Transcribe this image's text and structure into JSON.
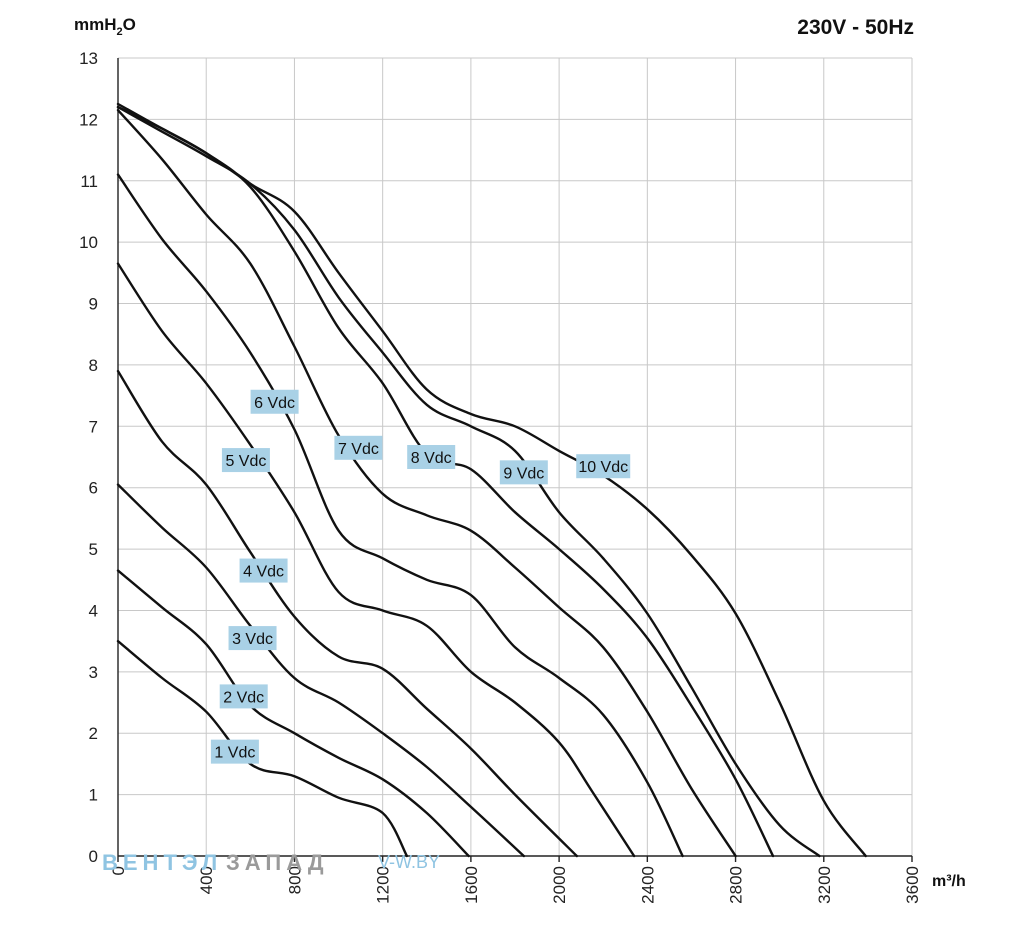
{
  "title": "230V - 50Hz",
  "watermark": {
    "part1": "ВЕНТЭЛ",
    "part2": "ЗАПАД",
    "site": "V-W.BY"
  },
  "chart_data": {
    "type": "line",
    "title": "230V - 50Hz",
    "xlabel": "m³/h",
    "ylabel": "mmH2O",
    "ylabel_main": "mmH",
    "ylabel_sub": "2",
    "ylabel_end": "O",
    "xlim": [
      0,
      3600
    ],
    "ylim": [
      0,
      13
    ],
    "x_ticks": [
      0,
      400,
      800,
      1200,
      1600,
      2000,
      2400,
      2800,
      3200,
      3600
    ],
    "y_ticks": [
      0,
      1,
      2,
      3,
      4,
      5,
      6,
      7,
      8,
      9,
      10,
      11,
      12,
      13
    ],
    "grid": true,
    "series": [
      {
        "name": "1 Vdc",
        "label_at": [
          530,
          1.7
        ],
        "points": [
          [
            0,
            3.5
          ],
          [
            200,
            2.9
          ],
          [
            400,
            2.35
          ],
          [
            600,
            1.5
          ],
          [
            800,
            1.3
          ],
          [
            1000,
            0.95
          ],
          [
            1200,
            0.7
          ],
          [
            1310,
            0
          ]
        ]
      },
      {
        "name": "2 Vdc",
        "label_at": [
          570,
          2.6
        ],
        "points": [
          [
            0,
            4.65
          ],
          [
            200,
            4.05
          ],
          [
            400,
            3.45
          ],
          [
            600,
            2.45
          ],
          [
            800,
            2.0
          ],
          [
            1000,
            1.6
          ],
          [
            1200,
            1.25
          ],
          [
            1400,
            0.7
          ],
          [
            1590,
            0
          ]
        ]
      },
      {
        "name": "3 Vdc",
        "label_at": [
          610,
          3.55
        ],
        "points": [
          [
            0,
            6.05
          ],
          [
            200,
            5.35
          ],
          [
            400,
            4.7
          ],
          [
            600,
            3.75
          ],
          [
            800,
            2.9
          ],
          [
            1000,
            2.5
          ],
          [
            1200,
            2.0
          ],
          [
            1400,
            1.45
          ],
          [
            1600,
            0.8
          ],
          [
            1840,
            0
          ]
        ]
      },
      {
        "name": "4 Vdc",
        "label_at": [
          660,
          4.65
        ],
        "points": [
          [
            0,
            7.9
          ],
          [
            200,
            6.75
          ],
          [
            400,
            6.05
          ],
          [
            600,
            4.95
          ],
          [
            800,
            3.9
          ],
          [
            1000,
            3.25
          ],
          [
            1200,
            3.05
          ],
          [
            1400,
            2.4
          ],
          [
            1600,
            1.75
          ],
          [
            1800,
            1.0
          ],
          [
            2080,
            0
          ]
        ]
      },
      {
        "name": "5 Vdc",
        "label_at": [
          580,
          6.45
        ],
        "points": [
          [
            0,
            9.65
          ],
          [
            200,
            8.55
          ],
          [
            400,
            7.7
          ],
          [
            600,
            6.7
          ],
          [
            800,
            5.6
          ],
          [
            1000,
            4.3
          ],
          [
            1200,
            4.0
          ],
          [
            1400,
            3.75
          ],
          [
            1600,
            3.0
          ],
          [
            1800,
            2.5
          ],
          [
            2000,
            1.85
          ],
          [
            2150,
            1.05
          ],
          [
            2340,
            0
          ]
        ]
      },
      {
        "name": "6 Vdc",
        "label_at": [
          710,
          7.4
        ],
        "points": [
          [
            0,
            11.1
          ],
          [
            200,
            10.05
          ],
          [
            400,
            9.2
          ],
          [
            600,
            8.2
          ],
          [
            800,
            6.95
          ],
          [
            1000,
            5.3
          ],
          [
            1200,
            4.85
          ],
          [
            1400,
            4.5
          ],
          [
            1600,
            4.25
          ],
          [
            1800,
            3.4
          ],
          [
            2000,
            2.9
          ],
          [
            2200,
            2.3
          ],
          [
            2400,
            1.2
          ],
          [
            2560,
            0
          ]
        ]
      },
      {
        "name": "7 Vdc",
        "label_at": [
          1090,
          6.65
        ],
        "points": [
          [
            0,
            12.15
          ],
          [
            200,
            11.35
          ],
          [
            400,
            10.45
          ],
          [
            600,
            9.65
          ],
          [
            800,
            8.3
          ],
          [
            1000,
            6.85
          ],
          [
            1200,
            5.9
          ],
          [
            1400,
            5.55
          ],
          [
            1600,
            5.3
          ],
          [
            1800,
            4.7
          ],
          [
            2000,
            4.05
          ],
          [
            2200,
            3.4
          ],
          [
            2400,
            2.35
          ],
          [
            2600,
            1.1
          ],
          [
            2800,
            0
          ]
        ]
      },
      {
        "name": "8 Vdc",
        "label_at": [
          1420,
          6.5
        ],
        "points": [
          [
            0,
            12.2
          ],
          [
            200,
            11.85
          ],
          [
            400,
            11.45
          ],
          [
            600,
            10.9
          ],
          [
            800,
            9.85
          ],
          [
            1000,
            8.6
          ],
          [
            1200,
            7.7
          ],
          [
            1400,
            6.55
          ],
          [
            1600,
            6.3
          ],
          [
            1800,
            5.6
          ],
          [
            2000,
            5.0
          ],
          [
            2200,
            4.35
          ],
          [
            2400,
            3.55
          ],
          [
            2600,
            2.45
          ],
          [
            2800,
            1.25
          ],
          [
            2970,
            0
          ]
        ]
      },
      {
        "name": "9 Vdc",
        "label_at": [
          1840,
          6.25
        ],
        "points": [
          [
            0,
            12.2
          ],
          [
            200,
            11.8
          ],
          [
            400,
            11.4
          ],
          [
            600,
            10.95
          ],
          [
            800,
            10.2
          ],
          [
            1000,
            9.1
          ],
          [
            1200,
            8.2
          ],
          [
            1400,
            7.35
          ],
          [
            1600,
            7.0
          ],
          [
            1800,
            6.6
          ],
          [
            2000,
            5.6
          ],
          [
            2200,
            4.85
          ],
          [
            2400,
            3.95
          ],
          [
            2600,
            2.75
          ],
          [
            2800,
            1.5
          ],
          [
            3000,
            0.5
          ],
          [
            3180,
            0
          ]
        ]
      },
      {
        "name": "10 Vdc",
        "label_at": [
          2200,
          6.35
        ],
        "points": [
          [
            0,
            12.25
          ],
          [
            200,
            11.85
          ],
          [
            400,
            11.45
          ],
          [
            600,
            10.95
          ],
          [
            800,
            10.5
          ],
          [
            1000,
            9.5
          ],
          [
            1200,
            8.55
          ],
          [
            1400,
            7.6
          ],
          [
            1600,
            7.2
          ],
          [
            1800,
            7.0
          ],
          [
            2000,
            6.6
          ],
          [
            2200,
            6.2
          ],
          [
            2400,
            5.65
          ],
          [
            2600,
            4.9
          ],
          [
            2800,
            3.95
          ],
          [
            3000,
            2.5
          ],
          [
            3200,
            0.9
          ],
          [
            3390,
            0
          ]
        ]
      }
    ]
  }
}
